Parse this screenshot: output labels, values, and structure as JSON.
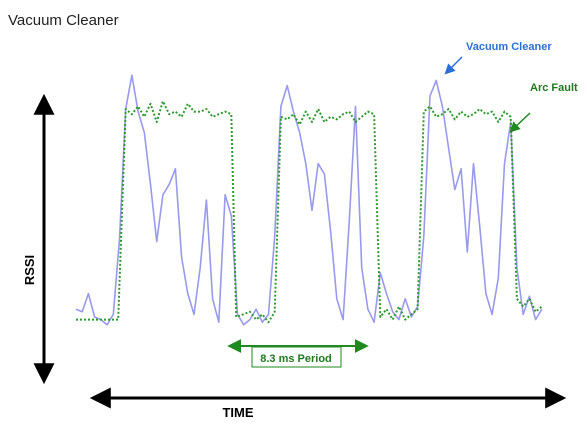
{
  "chart_data": {
    "type": "line",
    "title": "Vacuum Cleaner",
    "xlabel": "TIME",
    "ylabel": "RSSI",
    "xlim": [
      0,
      38
    ],
    "ylim": [
      0,
      100
    ],
    "grid": false,
    "legend": "none",
    "series": [
      {
        "name": "Vacuum Cleaner",
        "color": "#9999ee",
        "style": "solid",
        "x": [
          0,
          0.5,
          1,
          1.5,
          2,
          2.5,
          3,
          3.5,
          4,
          4.5,
          5,
          5.5,
          6,
          6.5,
          7,
          7.5,
          8,
          8.5,
          9,
          9.5,
          10,
          10.5,
          11,
          11.5,
          12,
          12.5,
          13,
          13.5,
          14,
          14.5,
          15,
          15.5,
          16,
          16.5,
          17,
          17.5,
          18,
          18.5,
          19,
          19.5,
          20,
          20.5,
          21,
          21.5,
          22,
          22.5,
          23,
          23.5,
          24,
          24.5,
          25,
          25.5,
          26,
          26.5,
          27,
          27.5,
          28,
          28.5,
          29,
          29.5,
          30,
          30.5,
          31,
          31.5,
          32,
          32.5,
          33,
          33.5,
          34,
          34.5,
          35,
          35.5,
          36,
          36.5,
          37,
          37.5
        ],
        "values": [
          8,
          7,
          14,
          5,
          4,
          2,
          6,
          35,
          85,
          98,
          84,
          76,
          56,
          34,
          52,
          56,
          62,
          28,
          14,
          6,
          24,
          50,
          12,
          3,
          52,
          44,
          6,
          2,
          4,
          8,
          3,
          6,
          36,
          86,
          94,
          84,
          76,
          64,
          46,
          64,
          60,
          38,
          12,
          4,
          42,
          86,
          24,
          8,
          3,
          22,
          14,
          7,
          4,
          12,
          5,
          9,
          36,
          90,
          96,
          86,
          70,
          54,
          62,
          30,
          64,
          40,
          14,
          6,
          20,
          64,
          80,
          24,
          6,
          13,
          4,
          8
        ]
      },
      {
        "name": "Arc Fault",
        "color": "#2e9a2e",
        "style": "dotted",
        "x": [
          0,
          2,
          2.4,
          3.4,
          4,
          4.5,
          5,
          5.5,
          6,
          6.5,
          7,
          7.5,
          8,
          8.5,
          9,
          9.5,
          10,
          10.5,
          11,
          11.5,
          12,
          12.5,
          12.9,
          14,
          14.5,
          15,
          15.5,
          16,
          16.5,
          17,
          17.5,
          18,
          18.5,
          19,
          19.5,
          20,
          20.5,
          21,
          21.5,
          22,
          22.5,
          23,
          23.5,
          24,
          24.5,
          25,
          25.5,
          26,
          26.5,
          27,
          27.5,
          28,
          28.5,
          29,
          29.5,
          30,
          30.5,
          31,
          31.5,
          32,
          32.5,
          33,
          33.5,
          34,
          34.5,
          35,
          35.5,
          36,
          36.5,
          37,
          37.5
        ],
        "values": [
          4,
          4,
          4,
          4,
          85,
          83,
          86,
          82,
          87,
          80,
          88,
          83,
          84,
          82,
          87,
          84,
          84,
          85,
          82,
          83,
          84,
          83,
          5,
          7,
          4,
          6,
          3,
          7,
          82,
          81,
          83,
          79,
          84,
          80,
          85,
          80,
          82,
          81,
          83,
          84,
          80,
          82,
          84,
          83,
          5,
          8,
          4,
          9,
          4,
          6,
          8,
          84,
          86,
          82,
          83,
          85,
          81,
          84,
          82,
          83,
          85,
          83,
          84,
          80,
          84,
          82,
          12,
          9,
          12,
          7,
          9
        ]
      }
    ],
    "annotations": [
      {
        "text": "Vacuum Cleaner",
        "target_series": "Vacuum Cleaner",
        "color": "#2b6fd6"
      },
      {
        "text": "Arc Fault",
        "target_series": "Arc Fault",
        "color": "#1f7a1f"
      },
      {
        "text": "8.3 ms Period",
        "from_x": 12.9,
        "to_x": 24.5,
        "color": "#1f7a1f"
      }
    ]
  }
}
